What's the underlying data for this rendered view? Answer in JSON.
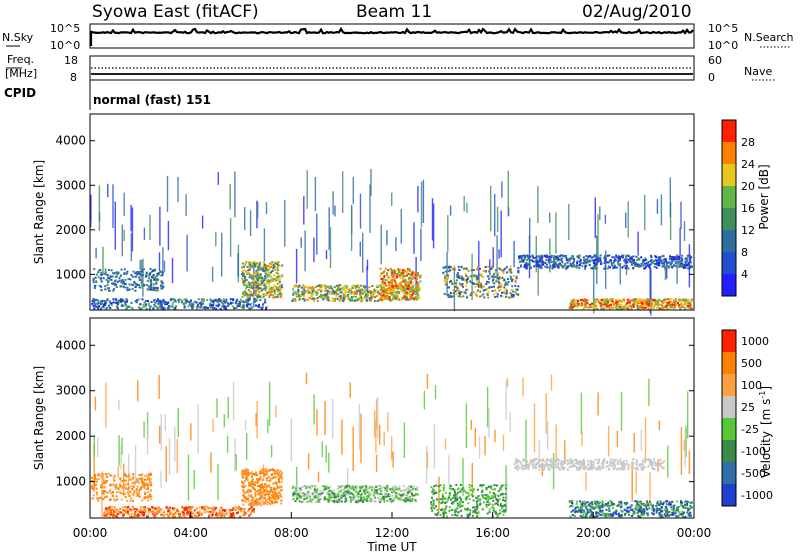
{
  "header": {
    "station": "Syowa East (fitACF)",
    "beam": "Beam 11",
    "date": "02/Aug/2010"
  },
  "chart_data": [
    {
      "type": "line",
      "name_left": "N.Sky",
      "name_right": "N.Search",
      "left_ticks": [
        "10^5",
        "10^0"
      ],
      "right_ticks": [
        "10^5",
        "10^0"
      ]
    },
    {
      "type": "line",
      "name_left_lines": [
        "Freq.",
        "[MHz]"
      ],
      "name_right": "Nave",
      "left_ticks": [
        "18",
        "8"
      ],
      "right_ticks": [
        "60",
        "0"
      ]
    },
    {
      "type": "table",
      "label": "CPID",
      "value": "normal (fast) 151"
    },
    {
      "type": "heatmap",
      "quantity": "power",
      "ylabel": "Slant Range [km]",
      "ylim": [
        200,
        4600
      ],
      "yticks": [
        "1000",
        "2000",
        "3000",
        "4000"
      ],
      "colorbar_label": "Power [dB]",
      "colorbar_ticks": [
        "4",
        "8",
        "12",
        "16",
        "20",
        "24",
        "28"
      ],
      "colors": [
        "#2020ff",
        "#2050d0",
        "#2e6e9e",
        "#3e8e5e",
        "#60b848",
        "#e8c820",
        "#ff8000",
        "#ff2000"
      ]
    },
    {
      "type": "heatmap",
      "quantity": "velocity",
      "ylabel": "Slant Range [km]",
      "ylim": [
        200,
        4600
      ],
      "yticks": [
        "1000",
        "2000",
        "3000",
        "4000"
      ],
      "xlabel": "Time UT",
      "xticks": [
        "00:00",
        "04:00",
        "08:00",
        "12:00",
        "16:00",
        "20:00",
        "00:00"
      ],
      "colorbar_label_lines": [
        "Velocity",
        "[m s",
        "-1",
        "]"
      ],
      "colorbar_ticks": [
        "1000",
        "500",
        "100",
        "25",
        "-25",
        "-100",
        "-500",
        "-1000"
      ],
      "colors": [
        "#2040d0",
        "#2e6eaa",
        "#3a8a4a",
        "#58c838",
        "#c8c8c8",
        "#ffa040",
        "#ff8000",
        "#ff2000"
      ]
    }
  ]
}
